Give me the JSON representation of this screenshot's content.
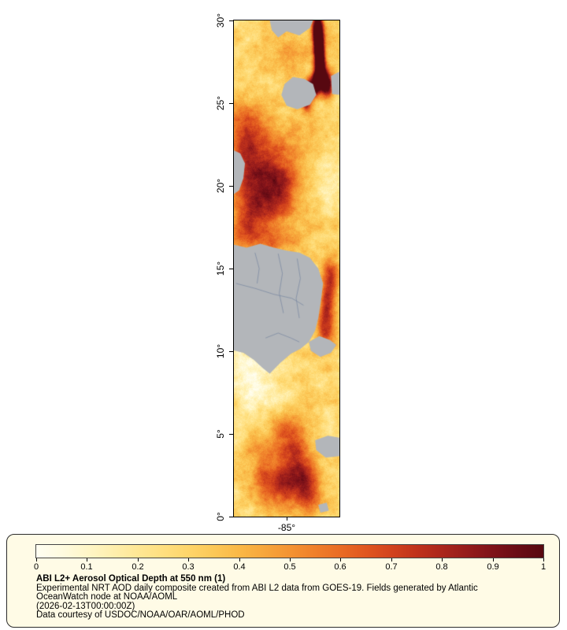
{
  "figure": {
    "background": "#ffffff"
  },
  "map": {
    "lat_ticks": [
      "30°",
      "25°",
      "20°",
      "15°",
      "10°",
      "5°",
      "0°"
    ],
    "lon_tick": "-85°",
    "lat_range": [
      0,
      30
    ],
    "frame_color": "#000000",
    "land_color": "#b3b6ba",
    "border_line_color": "#7d8ca3",
    "land_polygons": [
      [
        [
          0.34,
          0.0
        ],
        [
          0.75,
          0.0
        ],
        [
          0.72,
          0.015
        ],
        [
          0.62,
          0.03
        ],
        [
          0.5,
          0.022
        ],
        [
          0.42,
          0.034
        ],
        [
          0.36,
          0.02
        ]
      ],
      [
        [
          0.48,
          0.128
        ],
        [
          0.56,
          0.114
        ],
        [
          0.67,
          0.118
        ],
        [
          0.75,
          0.128
        ],
        [
          0.78,
          0.15
        ],
        [
          0.72,
          0.17
        ],
        [
          0.6,
          0.179
        ],
        [
          0.5,
          0.172
        ],
        [
          0.45,
          0.15
        ]
      ],
      [
        [
          0.92,
          0.112
        ],
        [
          1.0,
          0.103
        ],
        [
          1.0,
          0.15
        ],
        [
          0.93,
          0.148
        ]
      ],
      [
        [
          0.0,
          0.262
        ],
        [
          0.06,
          0.268
        ],
        [
          0.105,
          0.288
        ],
        [
          0.09,
          0.318
        ],
        [
          0.05,
          0.342
        ],
        [
          0.0,
          0.35
        ]
      ],
      [
        [
          0.0,
          0.452
        ],
        [
          0.12,
          0.458
        ],
        [
          0.25,
          0.45
        ],
        [
          0.38,
          0.458
        ],
        [
          0.5,
          0.464
        ],
        [
          0.62,
          0.468
        ],
        [
          0.72,
          0.478
        ],
        [
          0.8,
          0.5
        ],
        [
          0.845,
          0.53
        ],
        [
          0.825,
          0.565
        ],
        [
          0.8,
          0.6
        ],
        [
          0.77,
          0.625
        ],
        [
          0.71,
          0.648
        ],
        [
          0.63,
          0.662
        ],
        [
          0.54,
          0.672
        ],
        [
          0.44,
          0.69
        ],
        [
          0.34,
          0.712
        ],
        [
          0.27,
          0.7
        ],
        [
          0.19,
          0.684
        ],
        [
          0.09,
          0.67
        ],
        [
          0.0,
          0.665
        ]
      ],
      [
        [
          0.71,
          0.648
        ],
        [
          0.81,
          0.636
        ],
        [
          0.91,
          0.644
        ],
        [
          0.97,
          0.654
        ],
        [
          0.92,
          0.67
        ],
        [
          0.82,
          0.678
        ],
        [
          0.73,
          0.666
        ]
      ],
      [
        [
          0.77,
          0.846
        ],
        [
          0.89,
          0.837
        ],
        [
          1.0,
          0.841
        ],
        [
          1.0,
          0.878
        ],
        [
          0.87,
          0.881
        ],
        [
          0.78,
          0.866
        ]
      ],
      [
        [
          0.8,
          0.976
        ],
        [
          0.88,
          0.972
        ],
        [
          0.9,
          0.988
        ],
        [
          0.82,
          0.992
        ]
      ]
    ],
    "border_lines": [
      [
        [
          0.02,
          0.53
        ],
        [
          0.2,
          0.54
        ],
        [
          0.38,
          0.552
        ],
        [
          0.55,
          0.56
        ],
        [
          0.66,
          0.574
        ]
      ],
      [
        [
          0.2,
          0.468
        ],
        [
          0.24,
          0.5
        ],
        [
          0.22,
          0.53
        ]
      ],
      [
        [
          0.42,
          0.47
        ],
        [
          0.46,
          0.51
        ],
        [
          0.43,
          0.55
        ],
        [
          0.47,
          0.59
        ]
      ],
      [
        [
          0.6,
          0.48
        ],
        [
          0.63,
          0.52
        ],
        [
          0.59,
          0.56
        ],
        [
          0.62,
          0.6
        ]
      ],
      [
        [
          0.3,
          0.64
        ],
        [
          0.42,
          0.63
        ],
        [
          0.54,
          0.64
        ],
        [
          0.62,
          0.648
        ]
      ]
    ],
    "aod_bumps": [
      {
        "u": 0.79,
        "v": 0.015,
        "ru": 0.035,
        "rv": 0.02,
        "a": 1.0
      },
      {
        "u": 0.8,
        "v": 0.05,
        "ru": 0.03,
        "rv": 0.022,
        "a": 1.1
      },
      {
        "u": 0.815,
        "v": 0.085,
        "ru": 0.03,
        "rv": 0.022,
        "a": 1.1
      },
      {
        "u": 0.8,
        "v": 0.115,
        "ru": 0.04,
        "rv": 0.016,
        "a": 1.0
      },
      {
        "u": 0.72,
        "v": 0.14,
        "ru": 0.05,
        "rv": 0.015,
        "a": 0.85
      },
      {
        "u": 0.88,
        "v": 0.13,
        "ru": 0.04,
        "rv": 0.02,
        "a": 0.7
      },
      {
        "u": 0.68,
        "v": 0.165,
        "ru": 0.03,
        "rv": 0.012,
        "a": 0.55
      },
      {
        "u": 0.55,
        "v": 0.08,
        "ru": 0.1,
        "rv": 0.03,
        "a": 0.15
      },
      {
        "u": 0.15,
        "v": 0.2,
        "ru": 0.12,
        "rv": 0.04,
        "a": 0.15
      },
      {
        "u": 0.05,
        "v": 0.24,
        "ru": 0.1,
        "rv": 0.04,
        "a": 0.2
      },
      {
        "u": 0.3,
        "v": 0.28,
        "ru": 0.22,
        "rv": 0.05,
        "a": 0.28
      },
      {
        "u": 0.18,
        "v": 0.33,
        "ru": 0.15,
        "rv": 0.05,
        "a": 0.3
      },
      {
        "u": 0.45,
        "v": 0.33,
        "ru": 0.12,
        "rv": 0.04,
        "a": 0.22
      },
      {
        "u": 0.3,
        "v": 0.38,
        "ru": 0.2,
        "rv": 0.04,
        "a": 0.25
      },
      {
        "u": 0.12,
        "v": 0.42,
        "ru": 0.12,
        "rv": 0.03,
        "a": 0.18
      },
      {
        "u": 0.3,
        "v": 0.44,
        "ru": 0.25,
        "rv": 0.02,
        "a": 0.15
      },
      {
        "u": 0.85,
        "v": 0.3,
        "ru": 0.12,
        "rv": 0.06,
        "a": -0.08
      },
      {
        "u": 0.9,
        "v": 0.42,
        "ru": 0.1,
        "rv": 0.05,
        "a": -0.06
      },
      {
        "u": 0.93,
        "v": 0.52,
        "ru": 0.05,
        "rv": 0.03,
        "a": 0.3
      },
      {
        "u": 0.88,
        "v": 0.56,
        "ru": 0.05,
        "rv": 0.04,
        "a": 0.35
      },
      {
        "u": 0.86,
        "v": 0.62,
        "ru": 0.05,
        "rv": 0.03,
        "a": 0.3
      },
      {
        "u": 0.1,
        "v": 0.66,
        "ru": 0.1,
        "rv": 0.04,
        "a": -0.1
      },
      {
        "u": 0.15,
        "v": 0.72,
        "ru": 0.18,
        "rv": 0.05,
        "a": -0.15
      },
      {
        "u": 0.35,
        "v": 0.76,
        "ru": 0.15,
        "rv": 0.04,
        "a": -0.1
      },
      {
        "u": 0.6,
        "v": 0.78,
        "ru": 0.25,
        "rv": 0.04,
        "a": -0.08
      },
      {
        "u": 0.55,
        "v": 0.8,
        "ru": 0.15,
        "rv": 0.03,
        "a": 0.18
      },
      {
        "u": 0.25,
        "v": 0.9,
        "ru": 0.1,
        "rv": 0.04,
        "a": 0.25
      },
      {
        "u": 0.5,
        "v": 0.86,
        "ru": 0.12,
        "rv": 0.04,
        "a": 0.3
      },
      {
        "u": 0.62,
        "v": 0.91,
        "ru": 0.1,
        "rv": 0.035,
        "a": 0.38
      },
      {
        "u": 0.45,
        "v": 0.945,
        "ru": 0.12,
        "rv": 0.03,
        "a": 0.35
      },
      {
        "u": 0.72,
        "v": 0.955,
        "ru": 0.08,
        "rv": 0.03,
        "a": 0.3
      }
    ]
  },
  "colorbar": {
    "tick_labels": [
      "0",
      "0.1",
      "0.2",
      "0.3",
      "0.4",
      "0.5",
      "0.6",
      "0.7",
      "0.8",
      "0.9",
      "1"
    ],
    "box_background": "#fffbe6",
    "box_border": "#2b2b2b",
    "stops": [
      {
        "t": 0.0,
        "color": "#fffef2"
      },
      {
        "t": 0.05,
        "color": "#fffbe0"
      },
      {
        "t": 0.1,
        "color": "#fff6c8"
      },
      {
        "t": 0.15,
        "color": "#ffefae"
      },
      {
        "t": 0.2,
        "color": "#ffe795"
      },
      {
        "t": 0.25,
        "color": "#ffdf7f"
      },
      {
        "t": 0.3,
        "color": "#fed56a"
      },
      {
        "t": 0.35,
        "color": "#fcc857"
      },
      {
        "t": 0.4,
        "color": "#fab846"
      },
      {
        "t": 0.45,
        "color": "#f7a63b"
      },
      {
        "t": 0.5,
        "color": "#f49332"
      },
      {
        "t": 0.55,
        "color": "#ef7f2a"
      },
      {
        "t": 0.6,
        "color": "#e96b24"
      },
      {
        "t": 0.65,
        "color": "#e0561f"
      },
      {
        "t": 0.7,
        "color": "#d2431d"
      },
      {
        "t": 0.75,
        "color": "#c0321c"
      },
      {
        "t": 0.8,
        "color": "#ab261c"
      },
      {
        "t": 0.85,
        "color": "#951b1b"
      },
      {
        "t": 0.9,
        "color": "#7e1219"
      },
      {
        "t": 0.95,
        "color": "#690c15"
      },
      {
        "t": 1.0,
        "color": "#570810"
      }
    ]
  },
  "legend": {
    "title": "ABI L2+ Aerosol Optical Depth at 550 nm (1)",
    "lines": [
      "Experimental NRT AOD daily composite created from ABI L2 data from GOES-19. Fields generated by Atlantic",
      "OceanWatch node at NOAA/AOML",
      "(2026-02-13T00:00:00Z)",
      "Data courtesy of USDOC/NOAA/OAR/AOML/PHOD"
    ]
  }
}
